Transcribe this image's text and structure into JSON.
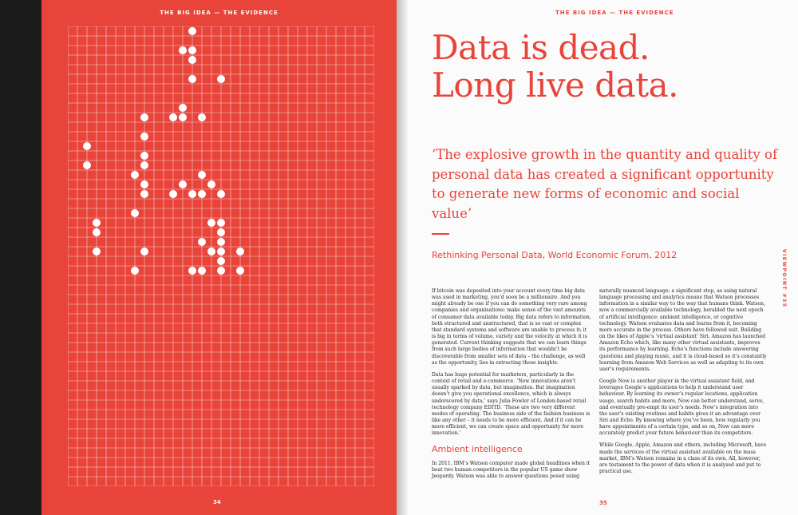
{
  "left_page": {
    "running_head": "THE BIG IDEA — THE EVIDENCE",
    "page_number": "34",
    "grid": {
      "columns": 16,
      "rows": 24,
      "line_color": "#ffffff",
      "dot_color": "#ffffff",
      "dots": [
        [
          13,
          0
        ],
        [
          12,
          2
        ],
        [
          13,
          2
        ],
        [
          13,
          3
        ],
        [
          13,
          5
        ],
        [
          16,
          5
        ],
        [
          12,
          8
        ],
        [
          8,
          9
        ],
        [
          11,
          9
        ],
        [
          12,
          9
        ],
        [
          14,
          9
        ],
        [
          8,
          11
        ],
        [
          2,
          12
        ],
        [
          8,
          13
        ],
        [
          2,
          14
        ],
        [
          8,
          14
        ],
        [
          7,
          15
        ],
        [
          14,
          15
        ],
        [
          8,
          16
        ],
        [
          12,
          16
        ],
        [
          15,
          16
        ],
        [
          8,
          17
        ],
        [
          11,
          17
        ],
        [
          13,
          17
        ],
        [
          14,
          17
        ],
        [
          16,
          17
        ],
        [
          7,
          19
        ],
        [
          3,
          20
        ],
        [
          15,
          20
        ],
        [
          16,
          20
        ],
        [
          3,
          21
        ],
        [
          16,
          21
        ],
        [
          14,
          22
        ],
        [
          16,
          22
        ],
        [
          3,
          23
        ],
        [
          8,
          23
        ],
        [
          15,
          23
        ],
        [
          16,
          23
        ],
        [
          18,
          23
        ],
        [
          16,
          24
        ],
        [
          7,
          25
        ],
        [
          13,
          25
        ],
        [
          14,
          25
        ],
        [
          16,
          25
        ],
        [
          18,
          25
        ]
      ]
    }
  },
  "right_page": {
    "running_head": "THE BIG IDEA — THE EVIDENCE",
    "page_number": "35",
    "side_label": "VIEWPOINT #35",
    "headline_line1": "Data is dead.",
    "headline_line2": "Long live data.",
    "pull_quote": "‘The explosive growth in the quantity and quality of personal data has created a significant opportunity to generate new forms of economic and social value’",
    "attribution": "Rethinking Personal Data, World Economic Forum, 2012",
    "subheading": "Ambient intelligence",
    "col1_p1": "If bitcoin was deposited into your account every time big data was used in marketing, you’d soon be a millionaire. And you might already be one if you can do something very rare among companies and organisations: make sense of the vast amounts of consumer data available today. Big data refers to information, both structured and unstructured, that is so vast or complex that standard systems and software are unable to process it; it is big in terms of volume, variety and the velocity at which it is generated. Current thinking suggests that we can learn things from such large bodies of information that wouldn’t be discoverable from smaller sets of data – the challenge, as well as the opportunity, lies in extracting those insights.",
    "col1_p2": "Data has huge potential for marketers, particularly in the context of retail and e-commerce. ‘New innovations aren’t usually sparked by data, but imagination. But imagination doesn’t give you operational excellence, which is always underscored by data,’ says Julia Fowler of London-based retail technology company EDITD. ‘These are two very different modes of operating. The business side of the fashion business is like any other – it needs to be more efficient. And if it can be more efficient, we can create space and opportunity for more innovation.’",
    "col1_p3": "In 2011, IBM’s Watson computer made global headlines when it beat two human competitors in the popular US game show Jeopardy. Watson was able to answer questions posed using",
    "col2_p1": "naturally nuanced language; a significant step, as using natural language processing and analytics means that Watson processes information in a similar way to the way that humans think. Watson, now a commercially available technology, heralded the next epoch of artificial intelligence: ambient intelligence, or cognitive technology. Watson evaluates data and learns from it, becoming more accurate in the process. Others have followed suit. Building on the likes of Apple’s ‘virtual assistant’ Siri, Amazon has launched Amazon Echo which, like many other virtual assistants, improves its performance by learning. Echo’s functions include answering questions and playing music, and it is cloud-based so it’s constantly learning from Amazon Web Services as well as adapting to its own user’s requirements.",
    "col2_p2": "Google Now is another player in the virtual assistant field, and leverages Google’s applications to help it understand user behaviour. By learning its owner’s regular locations, application usage, search habits and more, Now can better understand, serve, and eventually pre-empt its user’s needs. Now’s integration into the user’s existing routines and habits gives it an advantage over Siri and Echo. By knowing where you’ve been, how regularly you have appointments of a certain type, and so on, Now can more accurately predict your future behaviour than its competitors.",
    "col2_p3": "While Google, Apple, Amazon and others, including Microsoft, have made the services of the virtual assistant available on the mass market, IBM’s Watson remains in a class of its own. All, however, are testament to the power of data when it is analysed and put to practical use."
  }
}
